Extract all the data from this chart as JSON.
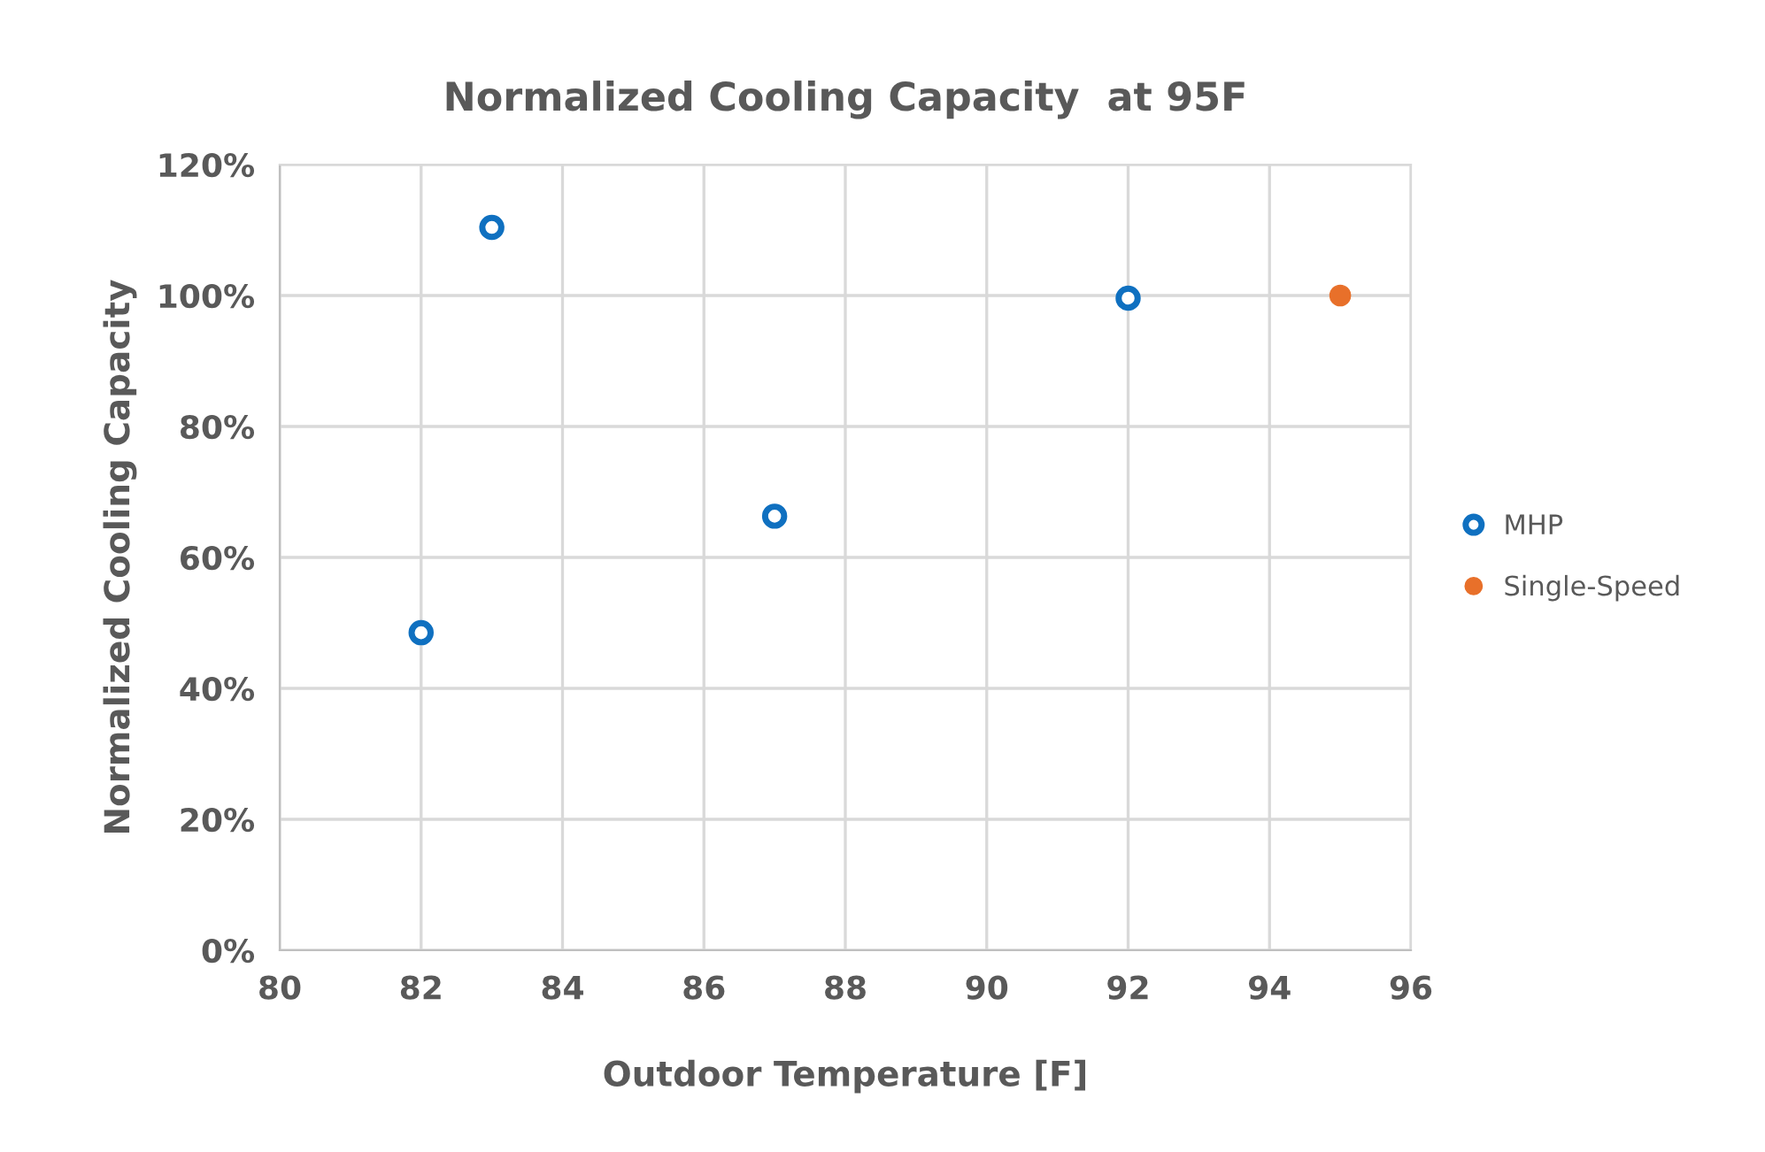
{
  "chart_data": {
    "type": "scatter",
    "title": "Normalized Cooling Capacity  at 95F",
    "xlabel": "Outdoor Temperature [F]",
    "ylabel": "Normalized Cooling Capacity",
    "xlim": [
      80,
      96
    ],
    "xticks": [
      80,
      82,
      84,
      86,
      88,
      90,
      92,
      94,
      96
    ],
    "ylim": [
      0,
      120
    ],
    "yticks": [
      {
        "value": 0,
        "label": "0%"
      },
      {
        "value": 20,
        "label": "20%"
      },
      {
        "value": 40,
        "label": "40%"
      },
      {
        "value": 60,
        "label": "60%"
      },
      {
        "value": 80,
        "label": "80%"
      },
      {
        "value": 100,
        "label": "100%"
      },
      {
        "value": 120,
        "label": "120%"
      }
    ],
    "grid": true,
    "legend": "right",
    "marker": "circle",
    "series": [
      {
        "name": "MHP",
        "color": "#0f70c0",
        "x": [
          82,
          83,
          87,
          92
        ],
        "values": [
          48.5,
          110.4,
          66.3,
          99.6
        ]
      },
      {
        "name": "Single-Speed",
        "color": "#e8702a",
        "x": [
          95
        ],
        "values": [
          100
        ]
      }
    ]
  }
}
